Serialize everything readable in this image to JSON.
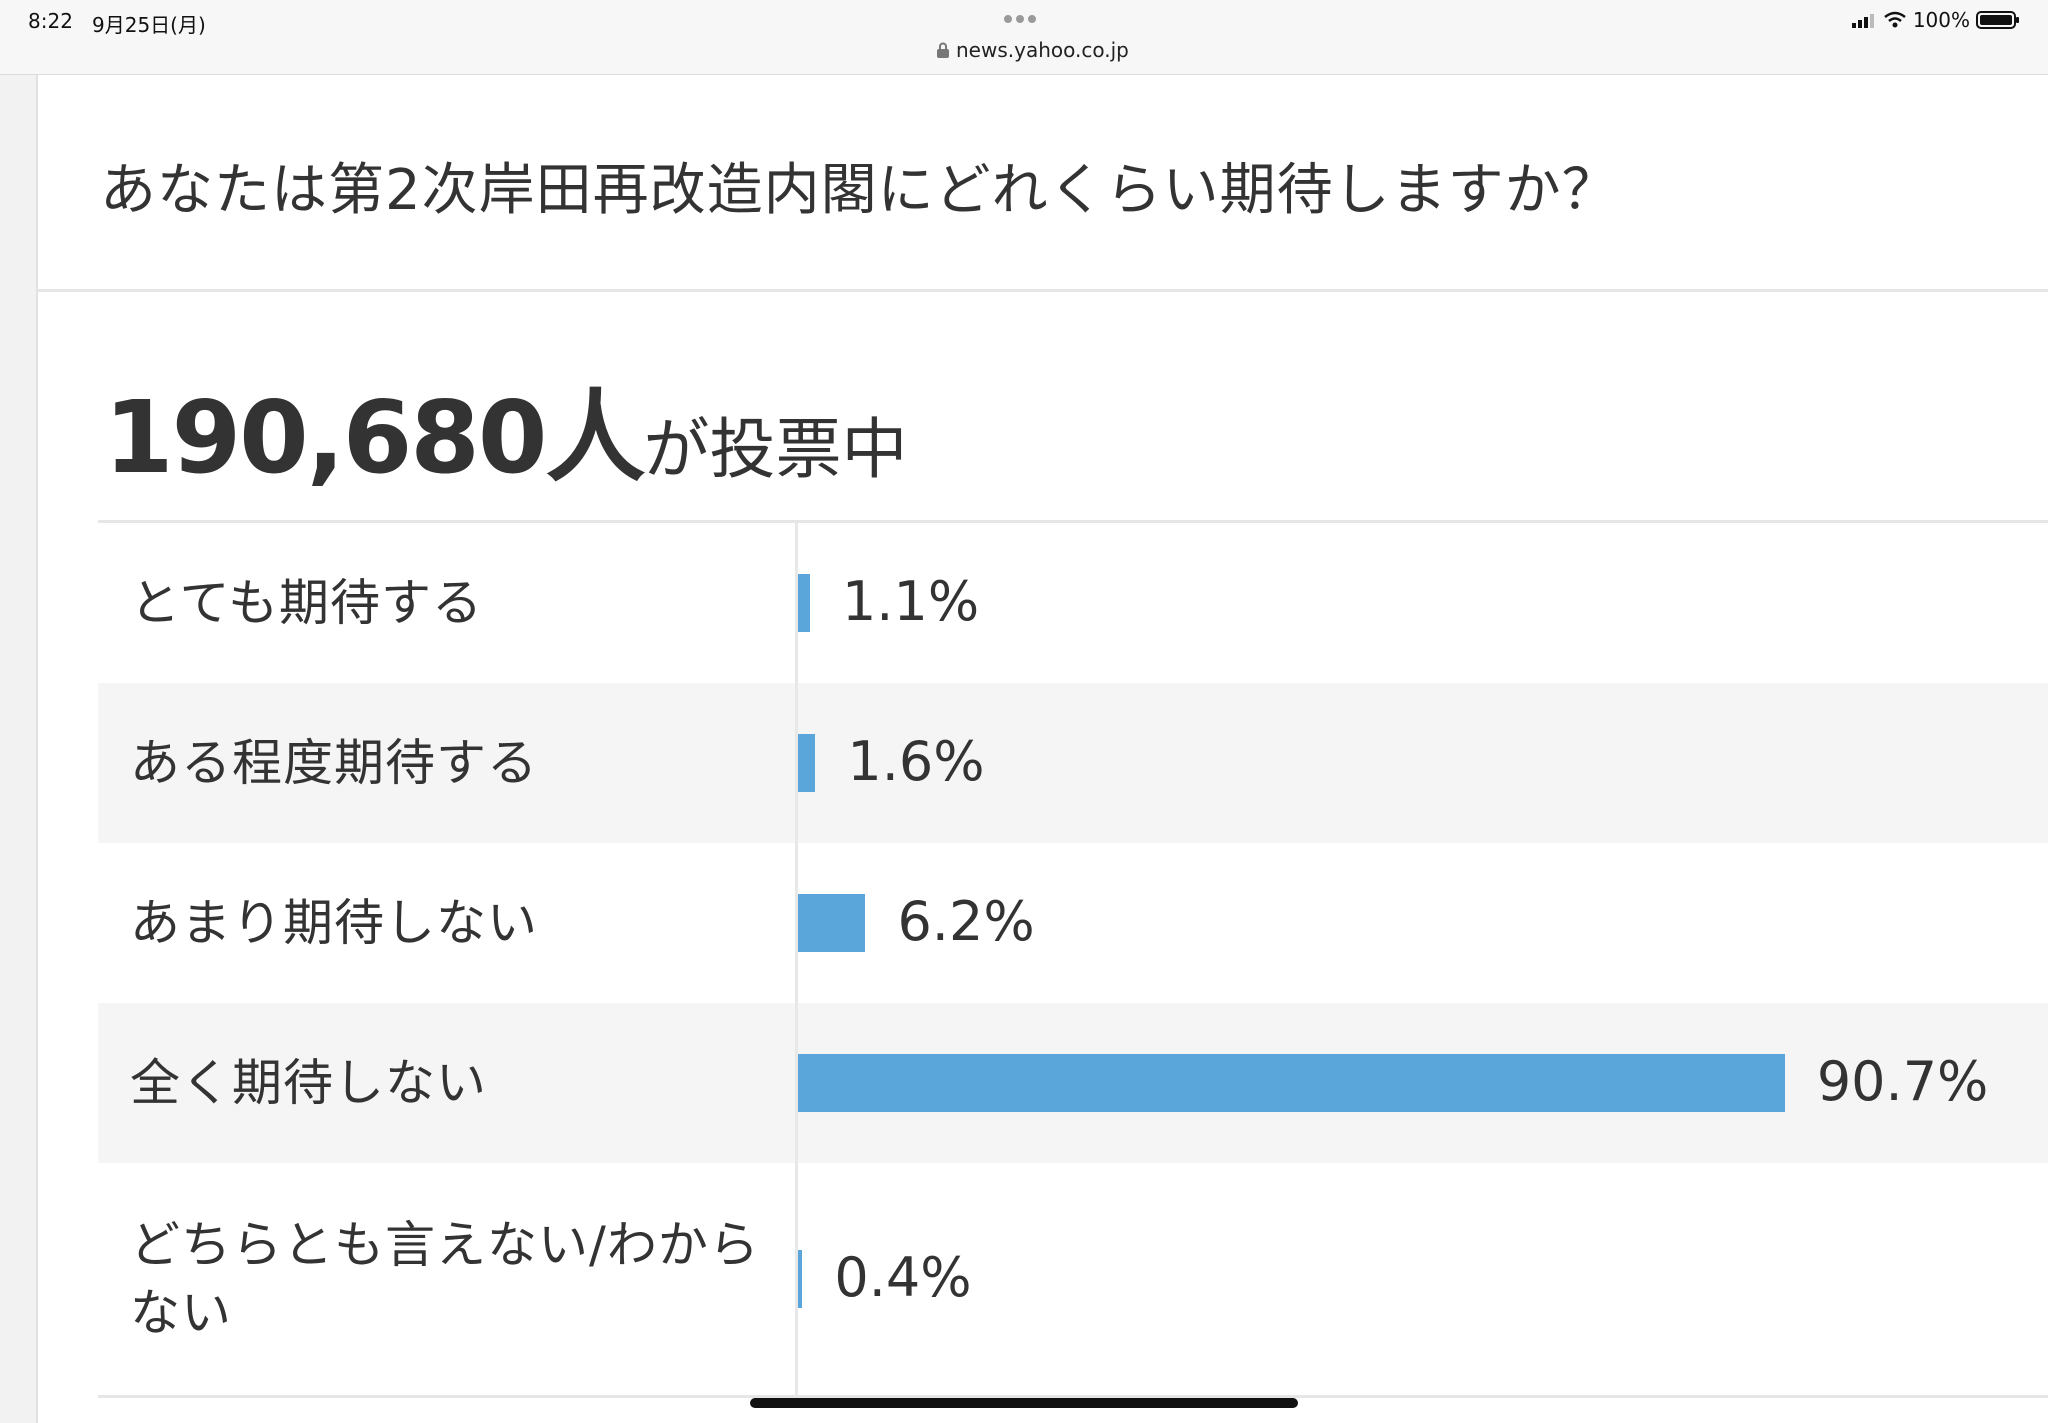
{
  "status_bar": {
    "time": "8:22",
    "date": "9月25日(月)",
    "url": "news.yahoo.co.jp",
    "battery": "100%"
  },
  "poll": {
    "question": "あなたは第2次岸田再改造内閣にどれくらい期待しますか？",
    "vote_count": "190,680人",
    "vote_suffix": "が投票中"
  },
  "colors": {
    "bar": "#5aa5d9",
    "alt_row": "#f5f5f5"
  },
  "chart_data": {
    "type": "bar",
    "orientation": "horizontal",
    "categories": [
      "とても期待する",
      "ある程度期待する",
      "あまり期待しない",
      "全く期待しない",
      "どちらとも言えない/わからない"
    ],
    "values": [
      1.1,
      1.6,
      6.2,
      90.7,
      0.4
    ],
    "labels": [
      "1.1%",
      "1.6%",
      "6.2%",
      "90.7%",
      "0.4%"
    ],
    "unit": "%",
    "xlim": [
      0,
      100
    ]
  }
}
